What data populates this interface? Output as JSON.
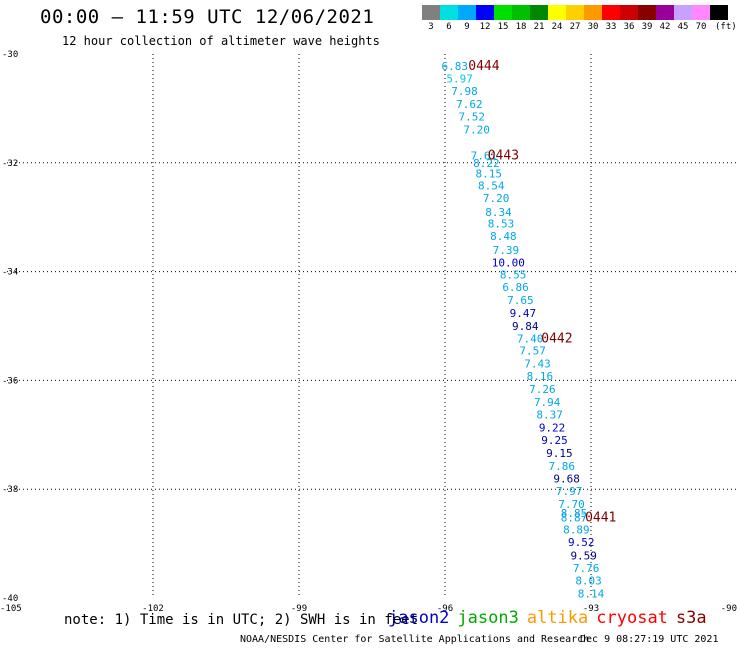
{
  "header": {
    "title": "00:00 – 11:59 UTC 12/06/2021",
    "subtitle": "12 hour collection of altimeter wave heights"
  },
  "legend": {
    "unit": "(ft)",
    "items": [
      {
        "label": "3",
        "color": "#808080"
      },
      {
        "label": "6",
        "color": "#00e0e0"
      },
      {
        "label": "9",
        "color": "#00a8ff"
      },
      {
        "label": "12",
        "color": "#0000ff"
      },
      {
        "label": "15",
        "color": "#00e000"
      },
      {
        "label": "18",
        "color": "#00c000"
      },
      {
        "label": "21",
        "color": "#008800"
      },
      {
        "label": "24",
        "color": "#ffff00"
      },
      {
        "label": "27",
        "color": "#ffd000"
      },
      {
        "label": "30",
        "color": "#ff9900"
      },
      {
        "label": "33",
        "color": "#ff0000"
      },
      {
        "label": "36",
        "color": "#cc0000"
      },
      {
        "label": "39",
        "color": "#880000"
      },
      {
        "label": "42",
        "color": "#990099"
      },
      {
        "label": "45",
        "color": "#c8a0ff"
      },
      {
        "label": "70",
        "color": "#ff88ff"
      },
      {
        "label": "",
        "color": "#000000"
      }
    ]
  },
  "chart_data": {
    "type": "scatter",
    "xlim": [
      -105,
      -90
    ],
    "ylim": [
      -40,
      -30
    ],
    "x_ticks": [
      "-105",
      "-102",
      "-99",
      "-96",
      "-93",
      "-90"
    ],
    "y_ticks": [
      "-30",
      "-32",
      "-34",
      "-36",
      "-38",
      "-40"
    ],
    "grid": true,
    "points": [
      {
        "x": -95.8,
        "y": -30.22,
        "label": "6.83",
        "color": "#00a8e8"
      },
      {
        "x": -95.7,
        "y": -30.45,
        "label": "5.97",
        "color": "#00c8e8"
      },
      {
        "x": -95.6,
        "y": -30.68,
        "label": "7.98",
        "color": "#00a8e8"
      },
      {
        "x": -95.5,
        "y": -30.92,
        "label": "7.62",
        "color": "#00a8e8"
      },
      {
        "x": -95.45,
        "y": -31.15,
        "label": "7.52",
        "color": "#00a8e8"
      },
      {
        "x": -95.35,
        "y": -31.39,
        "label": "7.20",
        "color": "#00a8e8"
      },
      {
        "x": -95.2,
        "y": -31.87,
        "label": "7.61",
        "color": "#00a8e8"
      },
      {
        "x": -95.15,
        "y": -32.0,
        "label": "8.22",
        "color": "#00a8e8"
      },
      {
        "x": -95.1,
        "y": -32.2,
        "label": "8.15",
        "color": "#00a8e8"
      },
      {
        "x": -95.05,
        "y": -32.42,
        "label": "8.54",
        "color": "#00a8e8"
      },
      {
        "x": -94.95,
        "y": -32.65,
        "label": "7.20",
        "color": "#00a8e8"
      },
      {
        "x": -94.9,
        "y": -32.9,
        "label": "8.34",
        "color": "#00a8e8"
      },
      {
        "x": -94.85,
        "y": -33.12,
        "label": "8.53",
        "color": "#00a8e8"
      },
      {
        "x": -94.8,
        "y": -33.35,
        "label": "8.48",
        "color": "#00a8e8"
      },
      {
        "x": -94.75,
        "y": -33.6,
        "label": "7.39",
        "color": "#00a8e8"
      },
      {
        "x": -94.7,
        "y": -33.83,
        "label": "10.00",
        "color": "#0000cc"
      },
      {
        "x": -94.6,
        "y": -34.05,
        "label": "8.55",
        "color": "#00a8e8"
      },
      {
        "x": -94.55,
        "y": -34.28,
        "label": "6.86",
        "color": "#00a8e8"
      },
      {
        "x": -94.45,
        "y": -34.52,
        "label": "7.65",
        "color": "#00a8e8"
      },
      {
        "x": -94.4,
        "y": -34.76,
        "label": "9.47",
        "color": "#0000cc"
      },
      {
        "x": -94.35,
        "y": -35.0,
        "label": "9.84",
        "color": "#000088"
      },
      {
        "x": -94.25,
        "y": -35.23,
        "label": "7.40",
        "color": "#00a8e8"
      },
      {
        "x": -94.2,
        "y": -35.45,
        "label": "7.57",
        "color": "#00a8e8"
      },
      {
        "x": -94.1,
        "y": -35.69,
        "label": "7.43",
        "color": "#00a8e8"
      },
      {
        "x": -94.05,
        "y": -35.92,
        "label": "8.16",
        "color": "#00a8e8"
      },
      {
        "x": -94.0,
        "y": -36.16,
        "label": "7.26",
        "color": "#00a8e8"
      },
      {
        "x": -93.9,
        "y": -36.4,
        "label": "7.94",
        "color": "#00a8e8"
      },
      {
        "x": -93.85,
        "y": -36.63,
        "label": "8.37",
        "color": "#00a8e8"
      },
      {
        "x": -93.8,
        "y": -36.87,
        "label": "9.22",
        "color": "#0000cc"
      },
      {
        "x": -93.75,
        "y": -37.1,
        "label": "9.25",
        "color": "#0000cc"
      },
      {
        "x": -93.65,
        "y": -37.33,
        "label": "9.15",
        "color": "#000088"
      },
      {
        "x": -93.6,
        "y": -37.57,
        "label": "7.86",
        "color": "#00a8e8"
      },
      {
        "x": -93.5,
        "y": -37.8,
        "label": "9.68",
        "color": "#000088"
      },
      {
        "x": -93.45,
        "y": -38.03,
        "label": "7.97",
        "color": "#00a8e8"
      },
      {
        "x": -93.4,
        "y": -38.27,
        "label": "7.70",
        "color": "#00a8e8"
      },
      {
        "x": -93.35,
        "y": -38.44,
        "label": "8.85",
        "color": "#00a8e8"
      },
      {
        "x": -93.35,
        "y": -38.52,
        "label": "8.87",
        "color": "#00a8e8"
      },
      {
        "x": -93.3,
        "y": -38.74,
        "label": "8.89",
        "color": "#00a8e8"
      },
      {
        "x": -93.2,
        "y": -38.97,
        "label": "9.52",
        "color": "#0000cc"
      },
      {
        "x": -93.15,
        "y": -39.22,
        "label": "9.59",
        "color": "#000088"
      },
      {
        "x": -93.1,
        "y": -39.45,
        "label": "7.76",
        "color": "#00a8e8"
      },
      {
        "x": -93.05,
        "y": -39.68,
        "label": "8.03",
        "color": "#00a8e8"
      },
      {
        "x": -93.0,
        "y": -39.92,
        "label": "8.14",
        "color": "#00a8e8"
      }
    ],
    "time_labels": [
      {
        "x": -95.2,
        "y": -30.22,
        "label": "0444"
      },
      {
        "x": -94.8,
        "y": -31.87,
        "label": "0443"
      },
      {
        "x": -93.7,
        "y": -35.23,
        "label": "0442"
      },
      {
        "x": -92.8,
        "y": -38.52,
        "label": "0441"
      }
    ],
    "annotation_color": "#800000"
  },
  "footer": {
    "note": "note: 1) Time is in UTC; 2) SWH is in feet",
    "satellites": [
      {
        "name": "jason2",
        "color": "#0000cc"
      },
      {
        "name": "jason3",
        "color": "#00aa00"
      },
      {
        "name": "altika",
        "color": "#ff9900"
      },
      {
        "name": "cryosat",
        "color": "#ff0000"
      },
      {
        "name": "s3a",
        "color": "#880000"
      }
    ],
    "credit": "NOAA/NESDIS Center for Satellite Applications and Research",
    "timestamp": "Dec  9 08:27:19 UTC 2021"
  }
}
